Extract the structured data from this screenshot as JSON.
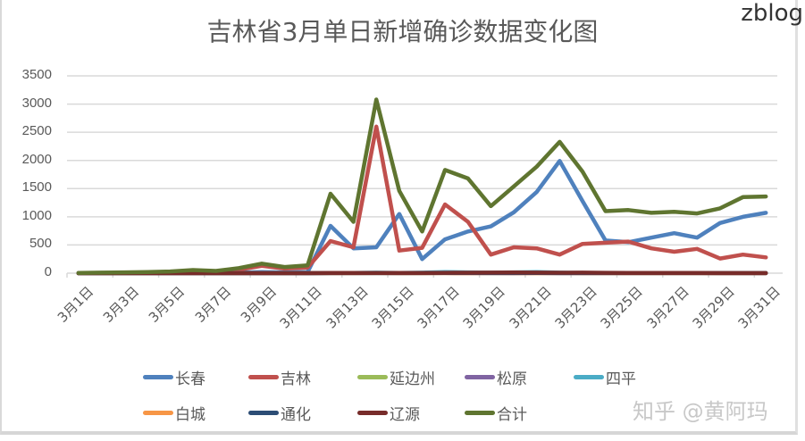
{
  "watermark_top": "zblog",
  "watermark_bottom": "知乎 @黄阿玛",
  "chart_data": {
    "type": "line",
    "title": "吉林省3月单日新增确诊数据变化图",
    "xlabel": "",
    "ylabel": "",
    "ylim": [
      0,
      3500
    ],
    "yticks": [
      "3500",
      "3000",
      "2500",
      "2000",
      "1500",
      "1000",
      "500",
      "0"
    ],
    "grid": true,
    "legend_position": "bottom",
    "categories": [
      "3月1日",
      "3月2日",
      "3月3日",
      "3月4日",
      "3月5日",
      "3月6日",
      "3月7日",
      "3月8日",
      "3月9日",
      "3月10日",
      "3月11日",
      "3月12日",
      "3月13日",
      "3月14日",
      "3月15日",
      "3月16日",
      "3月17日",
      "3月18日",
      "3月19日",
      "3月20日",
      "3月21日",
      "3月22日",
      "3月23日",
      "3月24日",
      "3月25日",
      "3月26日",
      "3月27日",
      "3月28日",
      "3月29日",
      "3月30日",
      "3月31日"
    ],
    "xtick_labels": [
      "3月1日",
      "3月3日",
      "3月5日",
      "3月7日",
      "3月9日",
      "3月11日",
      "3月13日",
      "3月15日",
      "3月17日",
      "3月19日",
      "3月21日",
      "3月23日",
      "3月25日",
      "3月27日",
      "3月29日",
      "3月31日"
    ],
    "series": [
      {
        "name": "长春",
        "color": "#4f81bd",
        "values": [
          2,
          2,
          3,
          3,
          5,
          8,
          5,
          10,
          20,
          15,
          20,
          840,
          440,
          460,
          1050,
          250,
          600,
          740,
          830,
          1080,
          1440,
          1990,
          1280,
          580,
          550,
          630,
          710,
          630,
          890,
          1000,
          1070
        ]
      },
      {
        "name": "吉林",
        "color": "#c0504d",
        "values": [
          2,
          4,
          5,
          8,
          15,
          30,
          25,
          60,
          130,
          80,
          100,
          570,
          460,
          2600,
          400,
          450,
          1220,
          910,
          330,
          460,
          440,
          330,
          520,
          540,
          560,
          440,
          380,
          430,
          260,
          330,
          280
        ]
      },
      {
        "name": "延边州",
        "color": "#9bbb59",
        "values": [
          0,
          0,
          0,
          0,
          0,
          0,
          0,
          0,
          0,
          0,
          0,
          1,
          1,
          2,
          1,
          1,
          2,
          2,
          1,
          3,
          2,
          2,
          1,
          1,
          1,
          1,
          1,
          1,
          1,
          1,
          1
        ]
      },
      {
        "name": "松原",
        "color": "#8064a2",
        "values": [
          0,
          0,
          0,
          0,
          0,
          0,
          0,
          0,
          0,
          0,
          0,
          0,
          0,
          1,
          0,
          1,
          1,
          0,
          1,
          0,
          1,
          0,
          0,
          0,
          0,
          0,
          0,
          0,
          0,
          0,
          0
        ]
      },
      {
        "name": "四平",
        "color": "#4bacc6",
        "values": [
          0,
          0,
          0,
          0,
          0,
          0,
          0,
          0,
          0,
          0,
          0,
          2,
          5,
          10,
          5,
          10,
          20,
          15,
          10,
          15,
          20,
          10,
          5,
          5,
          5,
          5,
          5,
          3,
          3,
          2,
          2
        ]
      },
      {
        "name": "白城",
        "color": "#f79646",
        "values": [
          0,
          0,
          0,
          0,
          0,
          0,
          0,
          0,
          0,
          0,
          0,
          0,
          0,
          1,
          0,
          0,
          1,
          0,
          1,
          0,
          0,
          1,
          0,
          0,
          0,
          0,
          0,
          0,
          0,
          0,
          0
        ]
      },
      {
        "name": "通化",
        "color": "#2c4d75",
        "values": [
          0,
          0,
          0,
          0,
          0,
          0,
          0,
          0,
          0,
          0,
          0,
          1,
          1,
          2,
          2,
          2,
          3,
          3,
          2,
          2,
          3,
          2,
          2,
          2,
          1,
          1,
          1,
          1,
          1,
          1,
          1
        ]
      },
      {
        "name": "辽源",
        "color": "#772c2a",
        "values": [
          0,
          0,
          0,
          0,
          0,
          0,
          0,
          0,
          0,
          0,
          0,
          3,
          4,
          5,
          4,
          5,
          6,
          8,
          10,
          12,
          10,
          8,
          10,
          6,
          5,
          4,
          3,
          3,
          2,
          2,
          2
        ]
      },
      {
        "name": "合计",
        "color": "#5f7530",
        "values": [
          5,
          10,
          15,
          20,
          30,
          55,
          40,
          90,
          170,
          110,
          140,
          1410,
          910,
          3080,
          1460,
          740,
          1830,
          1680,
          1190,
          1540,
          1890,
          2330,
          1800,
          1100,
          1120,
          1070,
          1090,
          1060,
          1150,
          1350,
          1360
        ]
      }
    ]
  }
}
